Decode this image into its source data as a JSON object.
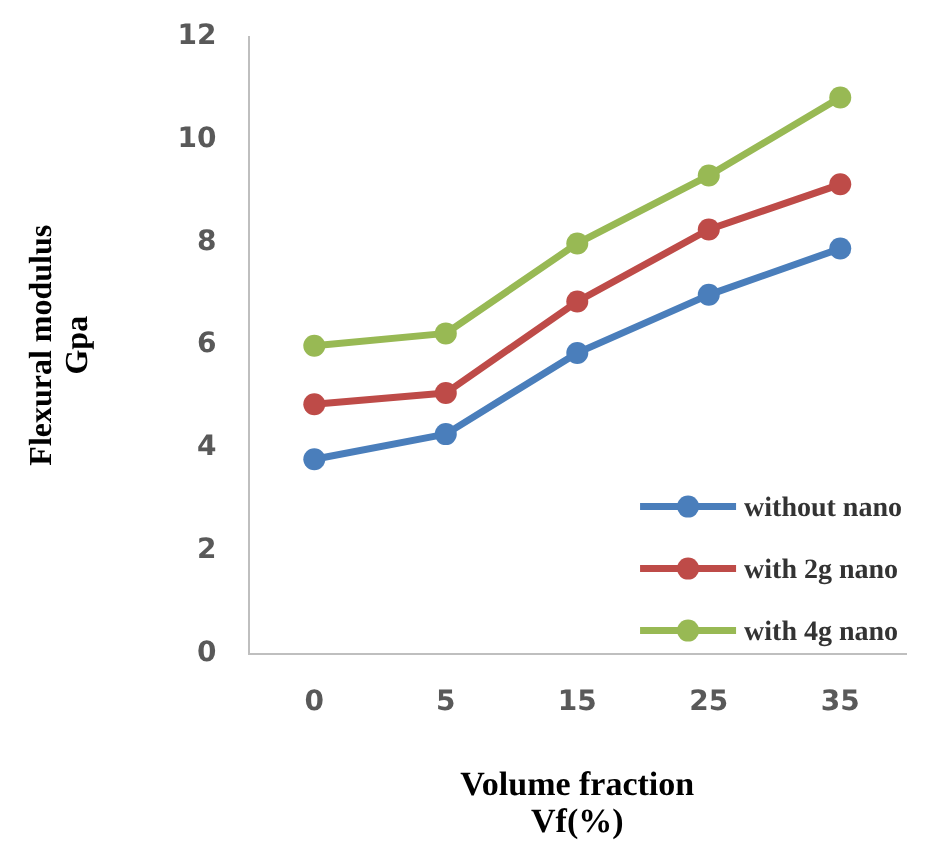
{
  "chart_data": {
    "type": "line",
    "xlabel": "Volume fraction\nVf(%)",
    "ylabel": "Flexural modulus\nGpa",
    "categories": [
      "0",
      "5",
      "15",
      "25",
      "35"
    ],
    "series": [
      {
        "name": "without nano",
        "color": "#4a7ebb",
        "values": [
          3.78,
          4.27,
          5.85,
          6.98,
          7.88
        ]
      },
      {
        "name": "with 2g nano",
        "color": "#be4b48",
        "values": [
          4.85,
          5.07,
          6.85,
          8.25,
          9.13
        ]
      },
      {
        "name": "with 4g nano",
        "color": "#98b954",
        "values": [
          5.99,
          6.23,
          7.98,
          9.3,
          10.82
        ]
      }
    ],
    "ylim": [
      0,
      12
    ],
    "yticks": [
      0,
      2,
      4,
      6,
      8,
      10,
      12
    ],
    "grid": false,
    "legend": "bottom right",
    "marker": "circle",
    "line_style": "solid"
  }
}
